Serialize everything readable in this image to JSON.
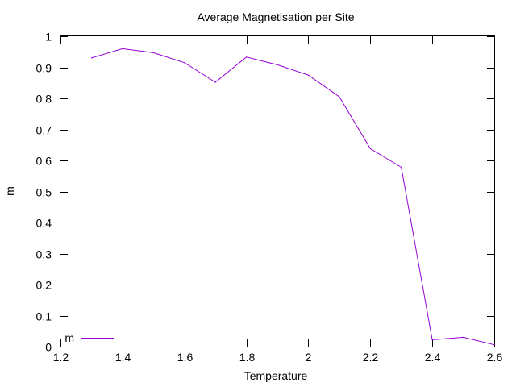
{
  "chart_data": {
    "type": "line",
    "title": "Average Magnetisation per Site",
    "xlabel": "Temperature",
    "ylabel": "m",
    "xlim": [
      1.2,
      2.6
    ],
    "ylim": [
      0,
      1
    ],
    "x_ticks": [
      "1.2",
      "1.4",
      "1.6",
      "1.8",
      "2",
      "2.2",
      "2.4",
      "2.6"
    ],
    "y_ticks": [
      "0",
      "0.1",
      "0.2",
      "0.3",
      "0.4",
      "0.5",
      "0.6",
      "0.7",
      "0.8",
      "0.9",
      "1"
    ],
    "grid": false,
    "legend_position": "bottom-left",
    "series": [
      {
        "name": "m",
        "color": "#9400d3",
        "x": [
          1.3,
          1.4,
          1.5,
          1.6,
          1.7,
          1.8,
          1.9,
          2.0,
          2.1,
          2.2,
          2.3,
          2.4,
          2.5,
          2.6
        ],
        "y": [
          0.93,
          0.96,
          0.947,
          0.915,
          0.852,
          0.933,
          0.908,
          0.875,
          0.805,
          0.638,
          0.578,
          0.022,
          0.03,
          0.006
        ]
      }
    ]
  }
}
